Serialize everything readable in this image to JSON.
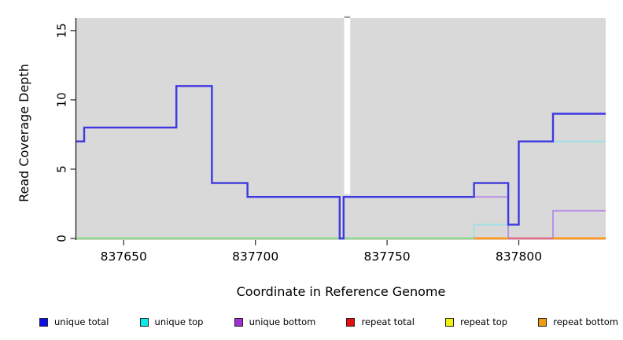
{
  "figure": {
    "y_axis_title": "Read Coverage Depth",
    "x_axis_title": "Coordinate in Reference Genome"
  },
  "chart_data": {
    "type": "line",
    "subtype": "step-coverage-plot",
    "title": "",
    "xlabel": "Coordinate in Reference Genome",
    "ylabel": "Read Coverage Depth",
    "xlim": [
      837632,
      837833
    ],
    "ylim": [
      0,
      15.9
    ],
    "x_ticks": [
      837650,
      837700,
      837750,
      837800
    ],
    "y_ticks": [
      0,
      5,
      10,
      15
    ],
    "grid": false,
    "legend_position": "bottom",
    "plot_bg": "#d9d9d9",
    "axis_color": "#1a1a1a",
    "gap_band": {
      "from": 837733.7,
      "to": 837736,
      "bottom_value": 3.2,
      "color": "#ffffff",
      "top_tick_color": "#a3a3a3"
    },
    "series": [
      {
        "name": "repeat total",
        "line_color": "#e85050",
        "layer": "under",
        "points": [
          [
            837632,
            0
          ]
        ]
      },
      {
        "name": "repeat top",
        "line_color": "#f0e96a",
        "layer": "under",
        "points": [
          [
            837632,
            0
          ]
        ]
      },
      {
        "name": "repeat bottom",
        "line_color": "#ff9718",
        "layer": "under",
        "points": [
          [
            837632,
            0
          ]
        ]
      },
      {
        "name": "unique top",
        "line_color": "#9ce2e6",
        "layer": "under",
        "points": [
          [
            837632,
            0
          ],
          [
            837783,
            1
          ],
          [
            837800,
            7
          ]
        ]
      },
      {
        "name": "unique bottom",
        "line_color": "#b98fe6",
        "layer": "under",
        "points": [
          [
            837632,
            7
          ],
          [
            837635,
            8
          ],
          [
            837670,
            11
          ],
          [
            837683.5,
            4
          ],
          [
            837697,
            3
          ],
          [
            837732,
            0
          ],
          [
            837733.5,
            3
          ],
          [
            837796,
            0
          ],
          [
            837813,
            2
          ]
        ]
      },
      {
        "name": "unique total",
        "line_color": "#4038e0",
        "layer": "over",
        "points": [
          [
            837632,
            7
          ],
          [
            837635,
            8
          ],
          [
            837670,
            11
          ],
          [
            837683.5,
            4
          ],
          [
            837697,
            3
          ],
          [
            837732,
            0
          ],
          [
            837733.5,
            3
          ],
          [
            837783,
            4
          ],
          [
            837796,
            1
          ],
          [
            837800,
            7
          ],
          [
            837813,
            9
          ]
        ]
      }
    ],
    "baseline_segments": [
      {
        "from": 837632,
        "to": 837783,
        "color": "#93d793"
      },
      {
        "from": 837783,
        "to": 837796,
        "color": "#ff9718"
      },
      {
        "from": 837796,
        "to": 837813,
        "color": "#e4708c"
      },
      {
        "from": 837813,
        "to": 837833,
        "color": "#ff9718"
      }
    ],
    "legend": [
      {
        "label": "unique total",
        "color": "#0d0de8"
      },
      {
        "label": "unique top",
        "color": "#0de8e8"
      },
      {
        "label": "unique bottom",
        "color": "#a02fd4"
      },
      {
        "label": "repeat total",
        "color": "#e80d0d"
      },
      {
        "label": "repeat top",
        "color": "#f0f00d"
      },
      {
        "label": "repeat bottom",
        "color": "#f09a0d"
      }
    ]
  }
}
